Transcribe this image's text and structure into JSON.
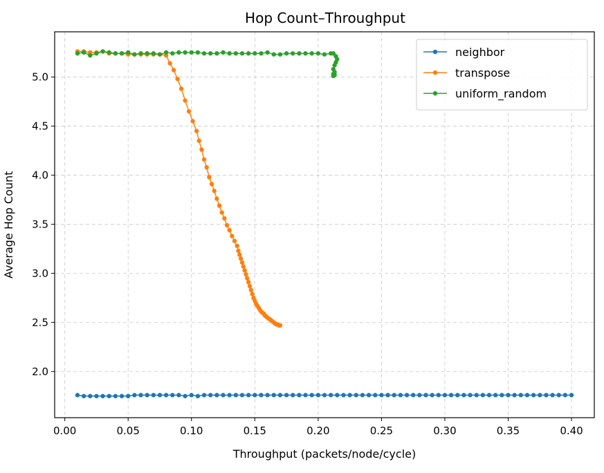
{
  "chart_data": {
    "type": "line",
    "title": "Hop Count–Throughput",
    "xlabel": "Throughput (packets/node/cycle)",
    "ylabel": "Average Hop Count",
    "xlim": [
      -0.008,
      0.418
    ],
    "ylim": [
      1.53,
      5.46
    ],
    "xticks": [
      "0.00",
      "0.05",
      "0.10",
      "0.15",
      "0.20",
      "0.25",
      "0.30",
      "0.35",
      "0.40"
    ],
    "yticks": [
      "2.0",
      "2.5",
      "3.0",
      "3.5",
      "4.0",
      "4.5",
      "5.0"
    ],
    "grid": true,
    "legend_position": "top-right",
    "series": [
      {
        "name": "neighbor",
        "color": "#1f77b4",
        "x": [
          0.01,
          0.015,
          0.02,
          0.025,
          0.03,
          0.035,
          0.04,
          0.045,
          0.05,
          0.055,
          0.06,
          0.065,
          0.07,
          0.075,
          0.08,
          0.085,
          0.09,
          0.095,
          0.1,
          0.105,
          0.11,
          0.115,
          0.12,
          0.125,
          0.13,
          0.135,
          0.14,
          0.145,
          0.15,
          0.155,
          0.16,
          0.165,
          0.17,
          0.175,
          0.18,
          0.185,
          0.19,
          0.195,
          0.2,
          0.205,
          0.21,
          0.215,
          0.22,
          0.225,
          0.23,
          0.235,
          0.24,
          0.245,
          0.25,
          0.255,
          0.26,
          0.265,
          0.27,
          0.275,
          0.28,
          0.285,
          0.29,
          0.295,
          0.3,
          0.305,
          0.31,
          0.315,
          0.32,
          0.325,
          0.33,
          0.335,
          0.34,
          0.345,
          0.35,
          0.355,
          0.36,
          0.365,
          0.37,
          0.375,
          0.38,
          0.385,
          0.39,
          0.395,
          0.4
        ],
        "y": [
          1.76,
          1.75,
          1.75,
          1.75,
          1.75,
          1.75,
          1.75,
          1.75,
          1.75,
          1.76,
          1.76,
          1.76,
          1.76,
          1.76,
          1.76,
          1.76,
          1.76,
          1.75,
          1.76,
          1.75,
          1.76,
          1.76,
          1.76,
          1.76,
          1.76,
          1.76,
          1.76,
          1.76,
          1.76,
          1.76,
          1.76,
          1.76,
          1.76,
          1.76,
          1.76,
          1.76,
          1.76,
          1.76,
          1.76,
          1.76,
          1.76,
          1.76,
          1.76,
          1.76,
          1.76,
          1.76,
          1.76,
          1.76,
          1.76,
          1.76,
          1.76,
          1.76,
          1.76,
          1.76,
          1.76,
          1.76,
          1.76,
          1.76,
          1.76,
          1.76,
          1.76,
          1.76,
          1.76,
          1.76,
          1.76,
          1.76,
          1.76,
          1.76,
          1.76,
          1.76,
          1.76,
          1.76,
          1.76,
          1.76,
          1.76,
          1.76,
          1.76,
          1.76,
          1.76
        ]
      },
      {
        "name": "transpose",
        "color": "#ff7f0e",
        "x": [
          0.01,
          0.015,
          0.02,
          0.025,
          0.03,
          0.035,
          0.04,
          0.045,
          0.05,
          0.055,
          0.06,
          0.065,
          0.07,
          0.075,
          0.08,
          0.083,
          0.086,
          0.089,
          0.092,
          0.095,
          0.098,
          0.101,
          0.104,
          0.106,
          0.108,
          0.11,
          0.112,
          0.114,
          0.116,
          0.118,
          0.12,
          0.122,
          0.124,
          0.126,
          0.128,
          0.13,
          0.132,
          0.134,
          0.136,
          0.137,
          0.138,
          0.139,
          0.14,
          0.141,
          0.142,
          0.143,
          0.144,
          0.145,
          0.146,
          0.147,
          0.148,
          0.149,
          0.15,
          0.151,
          0.152,
          0.153,
          0.154,
          0.155,
          0.156,
          0.157,
          0.158,
          0.159,
          0.16,
          0.161,
          0.162,
          0.163,
          0.164,
          0.165,
          0.166,
          0.167,
          0.168,
          0.169,
          0.17
        ],
        "y": [
          5.26,
          5.26,
          5.25,
          5.25,
          5.26,
          5.24,
          5.24,
          5.24,
          5.23,
          5.23,
          5.23,
          5.23,
          5.23,
          5.23,
          5.22,
          5.14,
          5.07,
          4.98,
          4.88,
          4.76,
          4.65,
          4.55,
          4.45,
          4.35,
          4.26,
          4.16,
          4.08,
          3.98,
          3.91,
          3.84,
          3.76,
          3.69,
          3.62,
          3.56,
          3.49,
          3.44,
          3.38,
          3.33,
          3.28,
          3.23,
          3.19,
          3.15,
          3.11,
          3.07,
          3.03,
          2.99,
          2.95,
          2.91,
          2.87,
          2.83,
          2.79,
          2.75,
          2.72,
          2.69,
          2.67,
          2.65,
          2.63,
          2.61,
          2.6,
          2.59,
          2.57,
          2.56,
          2.55,
          2.54,
          2.53,
          2.52,
          2.51,
          2.5,
          2.49,
          2.48,
          2.48,
          2.47,
          2.47
        ]
      },
      {
        "name": "uniform_random",
        "color": "#2ca02c",
        "x": [
          0.01,
          0.015,
          0.02,
          0.025,
          0.03,
          0.035,
          0.04,
          0.045,
          0.05,
          0.055,
          0.06,
          0.065,
          0.07,
          0.075,
          0.08,
          0.085,
          0.09,
          0.095,
          0.1,
          0.105,
          0.11,
          0.115,
          0.12,
          0.125,
          0.13,
          0.135,
          0.14,
          0.145,
          0.15,
          0.155,
          0.16,
          0.165,
          0.17,
          0.175,
          0.18,
          0.185,
          0.19,
          0.195,
          0.2,
          0.205,
          0.21,
          0.212,
          0.214,
          0.215,
          0.214,
          0.213,
          0.212,
          0.213,
          0.212,
          0.213,
          0.212
        ],
        "y": [
          5.24,
          5.25,
          5.22,
          5.24,
          5.26,
          5.25,
          5.24,
          5.24,
          5.25,
          5.23,
          5.24,
          5.24,
          5.24,
          5.23,
          5.25,
          5.24,
          5.25,
          5.25,
          5.25,
          5.25,
          5.24,
          5.24,
          5.24,
          5.25,
          5.24,
          5.24,
          5.24,
          5.24,
          5.24,
          5.24,
          5.25,
          5.23,
          5.23,
          5.24,
          5.24,
          5.24,
          5.24,
          5.24,
          5.24,
          5.23,
          5.24,
          5.24,
          5.21,
          5.18,
          5.15,
          5.12,
          5.08,
          5.05,
          5.03,
          5.02,
          5.01
        ]
      }
    ]
  }
}
